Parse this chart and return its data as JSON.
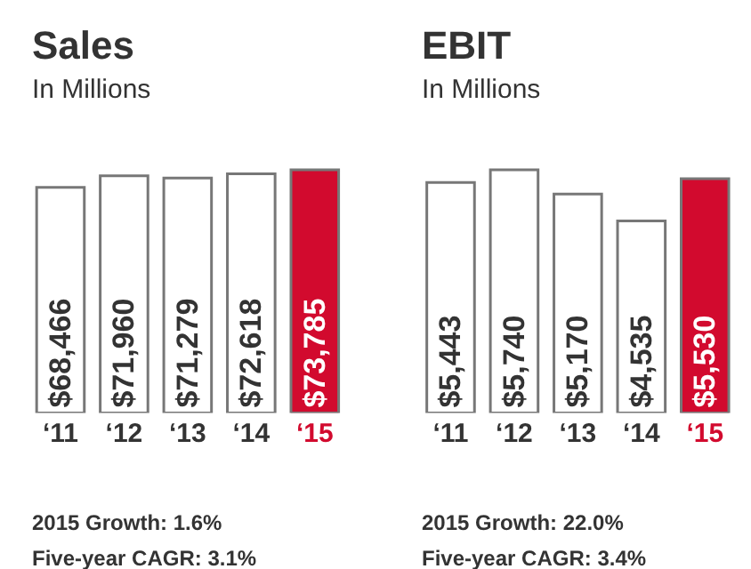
{
  "chart_data": [
    {
      "type": "bar",
      "title": "Sales",
      "subtitle": "In Millions",
      "categories": [
        "‘11",
        "‘12",
        "‘13",
        "‘14",
        "‘15"
      ],
      "values": [
        68466,
        71960,
        71279,
        72618,
        73785
      ],
      "value_labels": [
        "$68,466",
        "$71,960",
        "$71,279",
        "$72,618",
        "$73,785"
      ],
      "colors": [
        "#ffffff",
        "#ffffff",
        "#ffffff",
        "#ffffff",
        "#d20a2e"
      ],
      "annotations": [
        "2015 Growth: 1.6%",
        "Five-year CAGR: 3.1%"
      ]
    },
    {
      "type": "bar",
      "title": "EBIT",
      "subtitle": "In Millions",
      "categories": [
        "‘11",
        "‘12",
        "‘13",
        "‘14",
        "‘15"
      ],
      "values": [
        5443,
        5740,
        5170,
        4535,
        5530
      ],
      "value_labels": [
        "$5,443",
        "$5,740",
        "$5,170",
        "$4,535",
        "$5,530"
      ],
      "colors": [
        "#ffffff",
        "#ffffff",
        "#ffffff",
        "#ffffff",
        "#d20a2e"
      ],
      "annotations": [
        "2015 Growth: 22.0%",
        "Five-year CAGR: 3.4%"
      ]
    }
  ]
}
